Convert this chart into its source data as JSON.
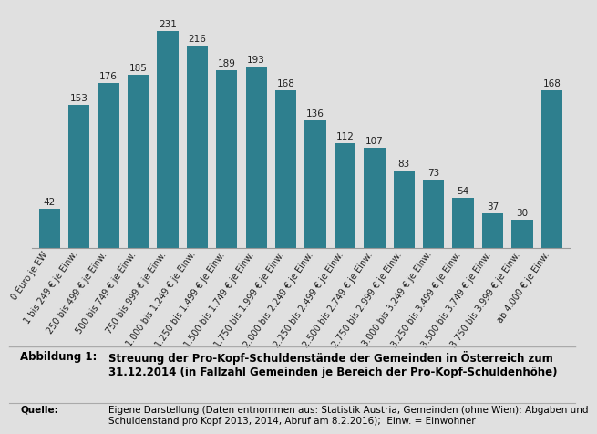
{
  "categories": [
    "0 Euro je EW",
    "1 bis 249 € je Einw.",
    "250 bis 499 € je Einw.",
    "500 bis 749 € je Einw.",
    "750 bis 999 € je Einw.",
    "1.000 bis 1.249 € je Einw.",
    "1.250 bis 1.499 € je Einw.",
    "1.500 bis 1.749 € je Einw.",
    "1.750 bis 1.999 € je Einw.",
    "2.000 bis 2.249 € je Einw.",
    "2.250 bis 2.499 € je Einw.",
    "2.500 bis 2.749 € je Einw.",
    "2.750 bis 2.999 € je Einw.",
    "3.000 bis 3.249 € je Einw.",
    "3.250 bis 3.499 € je Einw.",
    "3.500 bis 3.749 € je Einw.",
    "3.750 bis 3.999 € je Einw.",
    "ab 4.000 € je Einw."
  ],
  "values": [
    42,
    153,
    176,
    185,
    231,
    216,
    189,
    193,
    168,
    136,
    112,
    107,
    83,
    73,
    54,
    37,
    30,
    168
  ],
  "bar_color": "#2e7f8e",
  "background_color": "#e0e0e0",
  "plot_background_color": "#e0e0e0",
  "ylim": [
    0,
    255
  ],
  "title_label": "Abbildung 1:",
  "title_bold": "Streuung der Pro-Kopf-Schuldenstände der Gemeinden in Österreich zum\n31.12.2014 (in Fallzahl Gemeinden je Bereich der Pro-Kopf-Schuldenhöhe)",
  "source_label": "Quelle:",
  "source_text": "Eigene Darstellung (Daten entnommen aus: Statistik Austria, Gemeinden (ohne Wien): Abgaben und\nSchuldenstand pro Kopf 2013, 2014, Abruf am 8.2.2016);  Einw. = Einwohner",
  "separator_color": "#aaaaaa",
  "label_fontsize": 7.0,
  "value_fontsize": 7.5
}
